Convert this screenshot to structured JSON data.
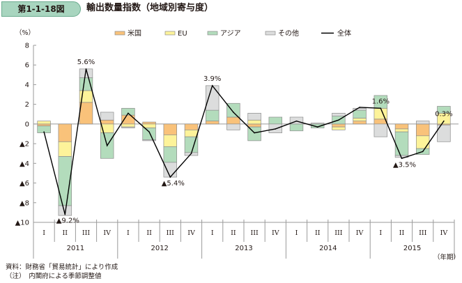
{
  "header": {
    "figure_number": "第1-1-18図",
    "title": "輸出数量指数（地域別寄与度）"
  },
  "footer": {
    "source": "資料：財務省「貿易統計」により作成",
    "note": "（注）　内閣府による季節調整値"
  },
  "colors": {
    "us": "#f9c27a",
    "eu": "#fdf39a",
    "asia": "#b3dcbc",
    "other": "#dcdddd",
    "bar_border": "#8c8c8c",
    "line": "#000000",
    "badge": "#a8d5bf"
  },
  "chart_data": {
    "type": "bar",
    "stacked": true,
    "title": "輸出数量指数（地域別寄与度）",
    "ylabel": "（%）",
    "xlabel": "（年期）",
    "ylim": [
      -10,
      8
    ],
    "yticks": [
      8,
      6,
      4,
      2,
      0,
      -2,
      -4,
      -6,
      -8,
      -10
    ],
    "ytick_labels": [
      "8",
      "6",
      "4",
      "2",
      "0",
      "▲2",
      "▲4",
      "▲6",
      "▲8",
      "▲10"
    ],
    "legend_position": "top",
    "legend": [
      "米国",
      "EU",
      "アジア",
      "その他",
      "全体"
    ],
    "quarters": [
      "I",
      "II",
      "III",
      "IV",
      "I",
      "II",
      "III",
      "IV",
      "I",
      "II",
      "III",
      "IV",
      "I",
      "II",
      "III",
      "IV",
      "I",
      "II",
      "III",
      "IV"
    ],
    "years": [
      "2011",
      "2012",
      "2013",
      "2014",
      "2015"
    ],
    "series": [
      {
        "name": "米国",
        "key": "us",
        "values": [
          -0.2,
          -1.8,
          2.2,
          0.4,
          0.9,
          0.2,
          -1.1,
          -0.6,
          0.3,
          0.7,
          -0.3,
          0.0,
          0.0,
          0.0,
          -0.3,
          0.3,
          0.5,
          -0.5,
          -1.2,
          -0.1
        ]
      },
      {
        "name": "EU",
        "key": "eu",
        "values": [
          0.3,
          -1.5,
          1.2,
          -0.9,
          -0.3,
          -0.4,
          -1.2,
          -0.7,
          0.0,
          0.0,
          0.4,
          0.0,
          0.0,
          0.0,
          -0.3,
          0.3,
          1.1,
          -0.3,
          -1.3,
          1.1
        ]
      },
      {
        "name": "アジア",
        "key": "asia",
        "values": [
          -0.7,
          -5.0,
          1.3,
          -2.6,
          0.7,
          -1.2,
          -1.6,
          -1.6,
          1.1,
          1.4,
          -1.4,
          0.7,
          -0.7,
          -0.4,
          0.8,
          0.8,
          1.3,
          -2.4,
          -0.6,
          0.7
        ]
      },
      {
        "name": "その他",
        "key": "other",
        "values": [
          0.0,
          -1.0,
          0.9,
          0.8,
          -0.1,
          -0.1,
          -1.5,
          -0.3,
          2.5,
          -0.6,
          0.7,
          -0.9,
          0.7,
          0.1,
          0.3,
          0.2,
          -1.3,
          -0.2,
          0.3,
          -1.7
        ]
      }
    ],
    "total": {
      "name": "全体",
      "values": [
        -0.8,
        -9.2,
        5.6,
        -2.2,
        1.1,
        -0.8,
        -5.4,
        -3.0,
        3.9,
        1.2,
        -0.9,
        -0.5,
        0.3,
        -0.3,
        0.4,
        1.7,
        1.6,
        -3.5,
        -2.8,
        0.3
      ]
    },
    "annotations": [
      {
        "index": 1,
        "text": "▲9.2%"
      },
      {
        "index": 2,
        "text": "5.6%"
      },
      {
        "index": 6,
        "text": "▲5.4%"
      },
      {
        "index": 8,
        "text": "3.9%"
      },
      {
        "index": 16,
        "text": "1.6%"
      },
      {
        "index": 17,
        "text": "▲3.5%"
      },
      {
        "index": 19,
        "text": "0.3%"
      }
    ]
  }
}
